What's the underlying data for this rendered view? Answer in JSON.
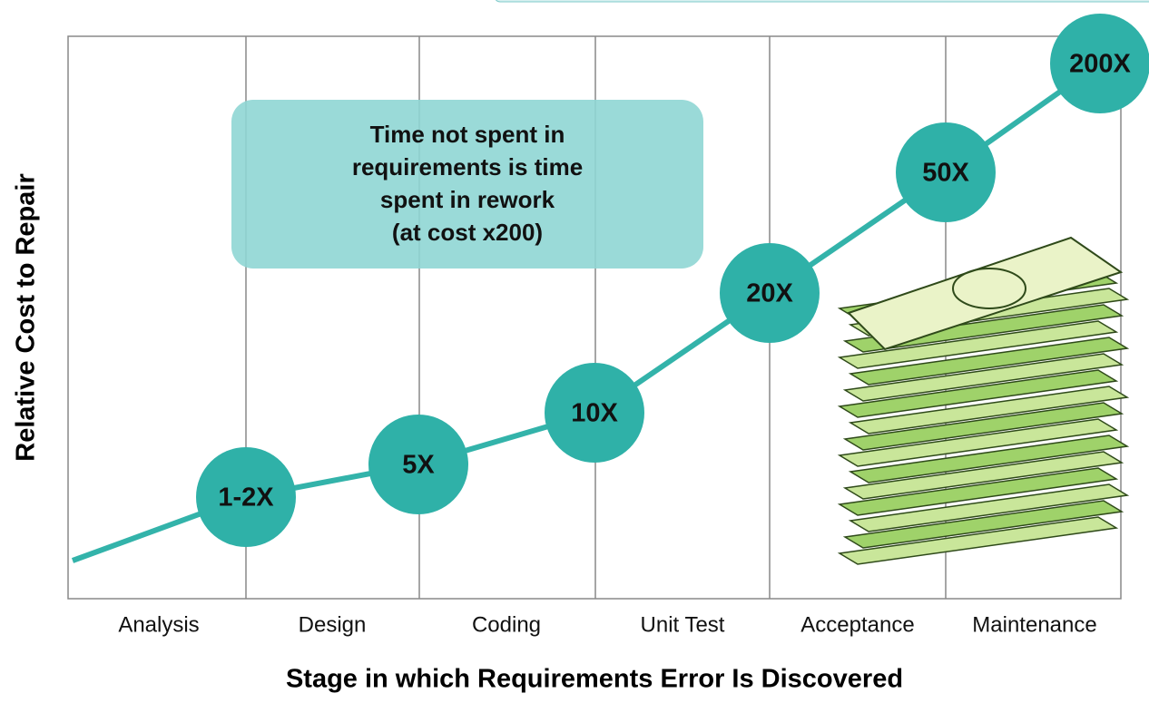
{
  "axis_titles": {
    "x": "Stage in which Requirements Error Is Discovered",
    "y": "Relative Cost to Repair"
  },
  "stages": [
    "Analysis",
    "Design",
    "Coding",
    "Unit Test",
    "Acceptance",
    "Maintenance"
  ],
  "cost_markers": [
    "1-2X",
    "5X",
    "10X",
    "20X",
    "50X",
    "200X"
  ],
  "callout": {
    "lines": [
      "Time not spent in",
      "requirements is time",
      "spent in rework",
      "(at cost x200)"
    ]
  }
}
